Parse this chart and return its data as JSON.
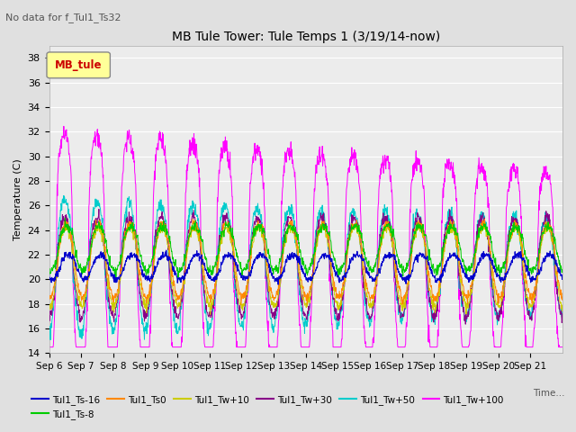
{
  "title": "MB Tule Tower: Tule Temps 1 (3/19/14-now)",
  "subtitle": "No data for f_Tul1_Ts32",
  "ylabel": "Temperature (C)",
  "xlabel": "Time...",
  "ylim": [
    14,
    39
  ],
  "yticks": [
    14,
    16,
    18,
    20,
    22,
    24,
    26,
    28,
    30,
    32,
    34,
    36,
    38
  ],
  "bg_color": "#e0e0e0",
  "plot_bg_color": "#ececec",
  "series_colors": {
    "Tul1_Ts-16": "#0000cc",
    "Tul1_Ts-8": "#00cc00",
    "Tul1_Ts0": "#ff8800",
    "Tul1_Tw+10": "#cccc00",
    "Tul1_Tw+30": "#880088",
    "Tul1_Tw+50": "#00cccc",
    "Tul1_Tw+100": "#ff00ff"
  },
  "legend_box_color": "#ffff99",
  "legend_box_text": "MB_tule",
  "legend_box_text_color": "#cc0000",
  "xtick_labels": [
    "Sep 6",
    "Sep 7",
    "Sep 8",
    "Sep 9",
    "Sep 10",
    "Sep 11",
    "Sep 12",
    "Sep 13",
    "Sep 14",
    "Sep 15",
    "Sep 16",
    "Sep 17",
    "Sep 18",
    "Sep 19",
    "Sep 20",
    "Sep 21"
  ]
}
